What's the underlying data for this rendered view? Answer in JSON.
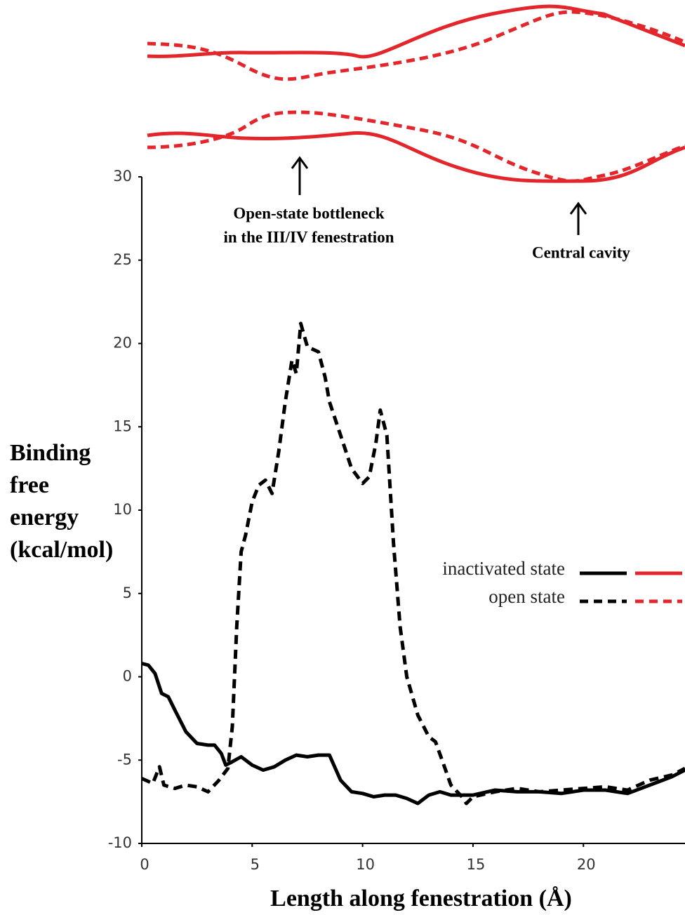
{
  "chart_data": {
    "type": "line",
    "y_label": [
      "Binding",
      "free",
      "energy",
      "(kcal/mol)"
    ],
    "x_label": "Length along fenestration (Å)",
    "annotations": [
      [
        "Open-state bottleneck",
        "in the III/IV fenestration"
      ],
      [
        "Central cavity"
      ]
    ],
    "xlim": [
      0,
      24.6
    ],
    "ylim": [
      -10,
      30
    ],
    "xticks": [
      0,
      5,
      10,
      15,
      20
    ],
    "yticks": [
      -10,
      -5,
      0,
      5,
      10,
      15,
      20,
      25,
      30
    ],
    "series": [
      {
        "name": "inactivated state",
        "color": "#000000",
        "dashed": false,
        "x": [
          0,
          0.3,
          0.6,
          0.9,
          1.2,
          1.5,
          2,
          2.5,
          3,
          3.3,
          3.6,
          3.8,
          4.1,
          4.5,
          5,
          5.5,
          6,
          6.5,
          7,
          7.5,
          8,
          8.5,
          9,
          9.5,
          10,
          10.5,
          11,
          11.5,
          12,
          12.5,
          13,
          13.5,
          14,
          15,
          16,
          17,
          18,
          19,
          20,
          21,
          22,
          23,
          24,
          24.6
        ],
        "values": [
          0.8,
          0.7,
          0.2,
          -1,
          -1.2,
          -2,
          -3.3,
          -4,
          -4.1,
          -4.1,
          -4.6,
          -5.3,
          -5.1,
          -4.8,
          -5.3,
          -5.6,
          -5.4,
          -5.0,
          -4.7,
          -4.8,
          -4.7,
          -4.7,
          -6.2,
          -6.9,
          -7,
          -7.2,
          -7.1,
          -7.1,
          -7.3,
          -7.6,
          -7.1,
          -6.9,
          -7.1,
          -7.1,
          -6.8,
          -6.9,
          -6.9,
          -7.0,
          -6.8,
          -6.8,
          -7.0,
          -6.5,
          -6.0,
          -5.6
        ]
      },
      {
        "name": "open state",
        "color": "#000000",
        "dashed": true,
        "x": [
          0,
          0.5,
          0.8,
          1,
          1.5,
          2,
          2.5,
          3,
          3.5,
          3.9,
          4.1,
          4.3,
          4.5,
          4.7,
          5,
          5.3,
          5.6,
          5.9,
          6.2,
          6.5,
          6.8,
          7,
          7.2,
          7.5,
          8,
          8.3,
          8.5,
          9,
          9.5,
          10,
          10.3,
          10.6,
          10.8,
          11.1,
          11.4,
          11.7,
          12,
          12.5,
          13,
          13.3,
          13.6,
          14,
          14.5,
          14.7,
          15,
          16,
          17,
          18,
          19,
          20,
          21,
          22,
          23,
          24,
          24.6
        ],
        "values": [
          -6.1,
          -6.4,
          -5.4,
          -6.5,
          -6.7,
          -6.5,
          -6.6,
          -6.9,
          -6.2,
          -5.5,
          -3,
          3,
          7.5,
          8.5,
          10.5,
          11.5,
          11.8,
          11,
          13.5,
          16.5,
          19,
          18.2,
          21.2,
          19.8,
          19.5,
          18,
          16.5,
          14.5,
          12.5,
          11.6,
          12,
          14,
          16,
          14.5,
          8,
          3,
          0,
          -2.3,
          -3.6,
          -3.9,
          -5,
          -6.5,
          -7.2,
          -7.6,
          -7.2,
          -6.9,
          -6.7,
          -6.9,
          -6.8,
          -6.7,
          -6.6,
          -6.8,
          -6.2,
          -5.9,
          -5.5
        ]
      }
    ]
  }
}
